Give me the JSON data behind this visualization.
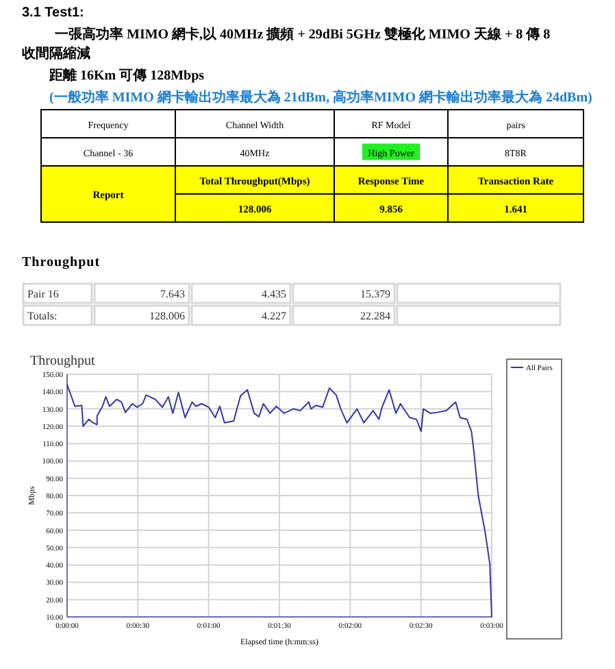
{
  "chart_data": [
    {
      "type": "other",
      "title": "3.1 Test1:",
      "annotations": [
        "一張高功率 MIMO 網卡,以 40MHz 擴頻 + 29dBi 5GHz 雙極化 MIMO 天線 + 8 傳 8 收間隔縮減",
        "距離 16Km 可傳 128Mbps",
        "(一般功率 MIMO 網卡輸出功率最大為 21dBm, 高功率MIMO 網卡輸出功率最大為 24dBm)",
        "Frequency",
        "Channel Width",
        "RF Model",
        "pairs",
        "Channel - 36",
        "40MHz",
        "High Power",
        "8T8R",
        "Report",
        "Total Throughput(Mbps)",
        "Response Time",
        "Transaction Rate",
        "128.006",
        "9.856",
        "1.641"
      ]
    },
    {
      "type": "other",
      "title": "Throughput",
      "annotations": [
        "Pair 16",
        "7.643",
        "4.435",
        "15.379",
        "Totals:",
        "128.006",
        "4.227",
        "22.284"
      ]
    },
    {
      "type": "line",
      "title": "Throughput",
      "xlabel": "Elapsed time (h:mm:ss)",
      "ylabel": "Mbps",
      "grid": true,
      "legend": "right",
      "xlim": [
        0,
        180
      ],
      "xticks": [
        {
          "value": 0,
          "label": "0:00:00"
        },
        {
          "value": 30,
          "label": "0:00:30"
        },
        {
          "value": 60,
          "label": "0:01:00"
        },
        {
          "value": 90,
          "label": "0:01:30"
        },
        {
          "value": 120,
          "label": "0:02:00"
        },
        {
          "value": 150,
          "label": "0:02:30"
        },
        {
          "value": 180,
          "label": "0:03:00"
        }
      ],
      "ylim": [
        10,
        150
      ],
      "yticks": [
        {
          "value": 10,
          "label": "10.00"
        },
        {
          "value": 20,
          "label": "20.00"
        },
        {
          "value": 30,
          "label": "30.00"
        },
        {
          "value": 40,
          "label": "40.00"
        },
        {
          "value": 50,
          "label": "50.00"
        },
        {
          "value": 60,
          "label": "60.00"
        },
        {
          "value": 70,
          "label": "70.00"
        },
        {
          "value": 80,
          "label": "80.00"
        },
        {
          "value": 90,
          "label": "90.00"
        },
        {
          "value": 100,
          "label": "100.00"
        },
        {
          "value": 110,
          "label": "110.00"
        },
        {
          "value": 120,
          "label": "120.00"
        },
        {
          "value": 130,
          "label": "130.00"
        },
        {
          "value": 140,
          "label": "140.00"
        },
        {
          "value": 150,
          "label": "150.00"
        }
      ],
      "series": [
        {
          "name": "All Pairs",
          "color": "#3333aa",
          "x": [
            0,
            0.8,
            3.3,
            6.2,
            6.8,
            9.2,
            11,
            12.7,
            12.7,
            15,
            16.4,
            18,
            21,
            23,
            24.7,
            27.7,
            29.6,
            32,
            33.5,
            37.4,
            40.4,
            42.9,
            44.8,
            47.2,
            50,
            53,
            54.6,
            57,
            60,
            62.8,
            64.7,
            66.7,
            70.6,
            73.5,
            76.4,
            79.3,
            81.3,
            83.2,
            86,
            88.7,
            92,
            95.9,
            98.8,
            102.4,
            103.4,
            105.4,
            108.3,
            111.2,
            114.1,
            116,
            118.6,
            122.9,
            125.8,
            129.7,
            132.2,
            133.5,
            136.5,
            139.4,
            141.3,
            145.2,
            148.1,
            150.1,
            151,
            154,
            156.9,
            160.8,
            164.7,
            166.6,
            169.5,
            171.4,
            172.4,
            174.3,
            177.2,
            179.2,
            180
          ],
          "values": [
            144,
            141,
            131.5,
            132,
            120,
            124,
            122,
            121,
            126,
            131.5,
            137,
            131.5,
            135.5,
            134,
            128,
            133,
            131,
            133,
            138,
            135.5,
            131,
            137,
            127.5,
            139.5,
            125,
            134,
            131.5,
            133,
            131,
            125,
            131.5,
            122,
            123,
            137.5,
            141,
            127.5,
            125.5,
            133,
            127.5,
            131.5,
            127.5,
            130,
            129,
            134,
            130,
            132,
            131,
            142,
            138,
            130,
            122,
            130,
            122,
            129,
            124,
            131,
            141,
            127.5,
            133,
            125,
            124,
            117,
            130,
            127.5,
            128,
            129,
            134,
            125,
            124,
            117,
            106,
            80,
            59,
            40.5,
            10
          ]
        }
      ]
    }
  ]
}
